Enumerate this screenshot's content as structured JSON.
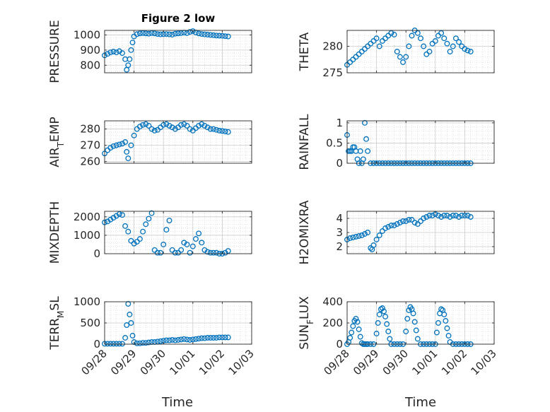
{
  "figure_title": "Figure 2 low",
  "colors": {
    "marker": "#0072BD",
    "axis": "#262626",
    "grid": "#d0d0d0"
  },
  "x_axis": {
    "ticks": [
      0,
      1,
      2,
      3,
      4,
      5
    ],
    "tick_labels": [
      "09/28",
      "09/29",
      "09/30",
      "10/01",
      "10/02",
      "10/03"
    ],
    "xlabel": "Time"
  },
  "chart_data": [
    {
      "type": "scatter",
      "ylabel": "PRESSURE",
      "ylim": [
        750,
        1030
      ],
      "yticks": [
        800,
        900,
        1000
      ],
      "grid": "on",
      "x": [
        0,
        0.1,
        0.2,
        0.3,
        0.4,
        0.5,
        0.6,
        0.7,
        0.75,
        0.8,
        0.85,
        0.9,
        0.95,
        1.0,
        1.1,
        1.2,
        1.3,
        1.4,
        1.5,
        1.6,
        1.7,
        1.8,
        1.9,
        2.0,
        2.1,
        2.2,
        2.3,
        2.4,
        2.5,
        2.6,
        2.7,
        2.8,
        2.9,
        3.0,
        3.1,
        3.2,
        3.3,
        3.4,
        3.5,
        3.6,
        3.7,
        3.8,
        3.9,
        4.0,
        4.1,
        4.2
      ],
      "y": [
        865,
        875,
        885,
        890,
        885,
        893,
        880,
        840,
        770,
        800,
        840,
        900,
        950,
        990,
        1005,
        1010,
        1012,
        1010,
        1008,
        1012,
        1010,
        1006,
        1004,
        1005,
        1006,
        1004,
        1002,
        1008,
        1010,
        1012,
        1015,
        1012,
        1020,
        1025,
        1016,
        1010,
        1006,
        1004,
        1002,
        1000,
        998,
        996,
        995,
        994,
        992,
        990
      ]
    },
    {
      "type": "scatter",
      "ylabel": "THETA",
      "ylim": [
        275,
        283
      ],
      "yticks": [
        275,
        280
      ],
      "grid": "on",
      "x": [
        0,
        0.1,
        0.2,
        0.3,
        0.4,
        0.5,
        0.6,
        0.7,
        0.8,
        0.9,
        1.0,
        1.1,
        1.2,
        1.3,
        1.4,
        1.5,
        1.6,
        1.7,
        1.8,
        1.9,
        2.0,
        2.1,
        2.2,
        2.3,
        2.4,
        2.5,
        2.6,
        2.7,
        2.8,
        2.9,
        3.0,
        3.1,
        3.2,
        3.3,
        3.4,
        3.5,
        3.6,
        3.7,
        3.8,
        3.9,
        4.0,
        4.1,
        4.2
      ],
      "y": [
        276.5,
        277,
        277.5,
        278,
        278.5,
        279,
        279.5,
        280,
        280.5,
        281,
        281.5,
        280,
        281,
        281.5,
        282,
        282.5,
        282.2,
        279,
        278,
        277,
        278,
        280,
        282,
        283,
        282.5,
        281.5,
        280,
        278.5,
        279,
        280.5,
        281,
        282,
        282.5,
        281.5,
        280.5,
        279,
        280,
        281.5,
        280.8,
        280,
        279.5,
        279.2,
        279
      ]
    },
    {
      "type": "scatter",
      "ylabel": "AIR_TEMP",
      "ylim": [
        259,
        285
      ],
      "yticks": [
        260,
        270,
        280
      ],
      "grid": "on",
      "x": [
        0,
        0.1,
        0.2,
        0.3,
        0.4,
        0.5,
        0.6,
        0.7,
        0.75,
        0.8,
        0.9,
        1.0,
        1.1,
        1.2,
        1.3,
        1.4,
        1.5,
        1.6,
        1.7,
        1.8,
        1.9,
        2.0,
        2.1,
        2.2,
        2.3,
        2.4,
        2.5,
        2.6,
        2.7,
        2.8,
        2.9,
        3.0,
        3.1,
        3.2,
        3.3,
        3.4,
        3.5,
        3.6,
        3.7,
        3.8,
        3.9,
        4.0,
        4.1,
        4.2
      ],
      "y": [
        265,
        267,
        268.5,
        269.5,
        270,
        270.5,
        271,
        272,
        266,
        262,
        270,
        276,
        280,
        281.5,
        282.5,
        283,
        282,
        280,
        279,
        279.5,
        281,
        282.5,
        283,
        282,
        281,
        280,
        281,
        282.5,
        283,
        282,
        280,
        279,
        280.5,
        282,
        283,
        282,
        281,
        280,
        280,
        279.5,
        279,
        278.8,
        278.5,
        278.2
      ]
    },
    {
      "type": "scatter",
      "ylabel": "RAINFALL",
      "ylim": [
        0,
        1.05
      ],
      "yticks": [
        0,
        0.5,
        1
      ],
      "grid": "on",
      "x": [
        0,
        0.05,
        0.1,
        0.15,
        0.2,
        0.25,
        0.3,
        0.35,
        0.4,
        0.45,
        0.5,
        0.55,
        0.6,
        0.65,
        0.7,
        0.8,
        0.9,
        1.0,
        1.1,
        1.2,
        1.3,
        1.4,
        1.5,
        1.6,
        1.7,
        1.8,
        1.9,
        2.0,
        2.1,
        2.2,
        2.3,
        2.4,
        2.5,
        2.6,
        2.7,
        2.8,
        2.9,
        3.0,
        3.1,
        3.2,
        3.3,
        3.4,
        3.5,
        3.6,
        3.7,
        3.8,
        3.9,
        4.0,
        4.1,
        4.2
      ],
      "y": [
        0.7,
        0.3,
        0.3,
        0.3,
        0.4,
        0.4,
        0.3,
        0.1,
        0,
        0.3,
        0,
        0.1,
        1.0,
        0.6,
        0.3,
        0,
        0,
        0,
        0,
        0,
        0,
        0,
        0,
        0,
        0,
        0,
        0,
        0,
        0,
        0,
        0,
        0,
        0,
        0,
        0,
        0,
        0,
        0,
        0,
        0,
        0,
        0,
        0,
        0,
        0,
        0,
        0,
        0,
        0,
        0
      ]
    },
    {
      "type": "scatter",
      "ylabel": "MIXDEPTH",
      "ylim": [
        0,
        2300
      ],
      "yticks": [
        0,
        1000,
        2000
      ],
      "grid": "on",
      "x": [
        0,
        0.1,
        0.2,
        0.3,
        0.4,
        0.5,
        0.6,
        0.7,
        0.8,
        0.9,
        1.0,
        1.1,
        1.2,
        1.3,
        1.4,
        1.5,
        1.6,
        1.7,
        1.8,
        1.9,
        2.0,
        2.1,
        2.2,
        2.3,
        2.4,
        2.5,
        2.6,
        2.7,
        2.8,
        2.9,
        3.0,
        3.1,
        3.2,
        3.3,
        3.4,
        3.5,
        3.6,
        3.7,
        3.8,
        3.9,
        4.0,
        4.1,
        4.2
      ],
      "y": [
        1700,
        1750,
        1850,
        1950,
        2050,
        2150,
        2100,
        1500,
        1200,
        700,
        550,
        650,
        800,
        1200,
        1600,
        1900,
        2200,
        200,
        50,
        50,
        500,
        1300,
        1800,
        200,
        50,
        50,
        200,
        600,
        500,
        50,
        400,
        800,
        1100,
        600,
        200,
        100,
        50,
        50,
        50,
        0,
        0,
        50,
        150
      ]
    },
    {
      "type": "scatter",
      "ylabel": "H2OMIXRA",
      "ylim": [
        1.5,
        4.5
      ],
      "yticks": [
        2,
        3,
        4
      ],
      "grid": "on",
      "x": [
        0,
        0.1,
        0.2,
        0.3,
        0.4,
        0.5,
        0.6,
        0.7,
        0.8,
        0.85,
        0.9,
        1.0,
        1.1,
        1.2,
        1.3,
        1.4,
        1.5,
        1.6,
        1.7,
        1.8,
        1.9,
        2.0,
        2.1,
        2.2,
        2.3,
        2.4,
        2.5,
        2.6,
        2.7,
        2.8,
        2.9,
        3.0,
        3.1,
        3.2,
        3.3,
        3.4,
        3.5,
        3.6,
        3.7,
        3.8,
        3.9,
        4.0,
        4.1,
        4.2
      ],
      "y": [
        2.5,
        2.6,
        2.65,
        2.7,
        2.75,
        2.8,
        2.9,
        3.0,
        1.9,
        1.8,
        2.1,
        2.5,
        2.8,
        3.1,
        3.3,
        3.4,
        3.5,
        3.5,
        3.6,
        3.7,
        3.8,
        3.8,
        3.9,
        3.9,
        3.7,
        3.6,
        3.8,
        4.0,
        4.1,
        4.2,
        4.2,
        4.3,
        4.2,
        4.1,
        4.2,
        4.2,
        4.1,
        4.2,
        4.2,
        4.1,
        4.2,
        4.2,
        4.2,
        4.1
      ]
    },
    {
      "type": "scatter",
      "ylabel": "TERR_MSL",
      "ylim": [
        0,
        1000
      ],
      "yticks": [
        0,
        500,
        1000
      ],
      "grid": "on",
      "x": [
        0,
        0.1,
        0.2,
        0.3,
        0.4,
        0.5,
        0.6,
        0.7,
        0.75,
        0.8,
        0.85,
        0.9,
        0.95,
        1.0,
        1.1,
        1.2,
        1.3,
        1.4,
        1.5,
        1.6,
        1.7,
        1.8,
        1.9,
        2.0,
        2.1,
        2.2,
        2.3,
        2.4,
        2.5,
        2.6,
        2.7,
        2.8,
        2.9,
        3.0,
        3.1,
        3.2,
        3.3,
        3.4,
        3.5,
        3.6,
        3.7,
        3.8,
        3.9,
        4.0,
        4.1,
        4.2
      ],
      "y": [
        10,
        10,
        10,
        10,
        10,
        10,
        10,
        150,
        450,
        950,
        700,
        500,
        200,
        50,
        20,
        20,
        30,
        30,
        40,
        50,
        50,
        60,
        70,
        80,
        90,
        90,
        100,
        90,
        100,
        110,
        120,
        110,
        100,
        110,
        120,
        130,
        140,
        140,
        150,
        150,
        150,
        150,
        160,
        160,
        160,
        160
      ]
    },
    {
      "type": "scatter",
      "ylabel": "SUN_FLUX",
      "ylim": [
        0,
        400
      ],
      "yticks": [
        0,
        200,
        400
      ],
      "grid": "on",
      "x": [
        0,
        0.05,
        0.1,
        0.15,
        0.2,
        0.25,
        0.3,
        0.35,
        0.4,
        0.45,
        0.5,
        0.55,
        0.6,
        0.65,
        0.7,
        0.8,
        0.9,
        1.0,
        1.05,
        1.1,
        1.15,
        1.2,
        1.25,
        1.3,
        1.35,
        1.4,
        1.45,
        1.5,
        1.6,
        1.7,
        1.8,
        1.9,
        2.0,
        2.05,
        2.1,
        2.15,
        2.2,
        2.25,
        2.3,
        2.35,
        2.4,
        2.5,
        2.6,
        2.7,
        2.8,
        2.9,
        3.0,
        3.05,
        3.1,
        3.15,
        3.2,
        3.25,
        3.3,
        3.35,
        3.4,
        3.45,
        3.5,
        3.6,
        3.7,
        3.8,
        3.9,
        4.0,
        4.1,
        4.2
      ],
      "y": [
        0,
        20,
        60,
        110,
        170,
        220,
        240,
        210,
        140,
        70,
        10,
        0,
        0,
        0,
        0,
        0,
        0,
        100,
        200,
        280,
        330,
        340,
        310,
        260,
        190,
        120,
        50,
        0,
        0,
        0,
        0,
        0,
        120,
        240,
        320,
        350,
        330,
        290,
        210,
        130,
        50,
        0,
        0,
        0,
        0,
        0,
        0,
        110,
        200,
        290,
        330,
        320,
        280,
        220,
        150,
        80,
        20,
        0,
        0,
        0,
        0,
        0,
        0,
        0
      ]
    }
  ]
}
